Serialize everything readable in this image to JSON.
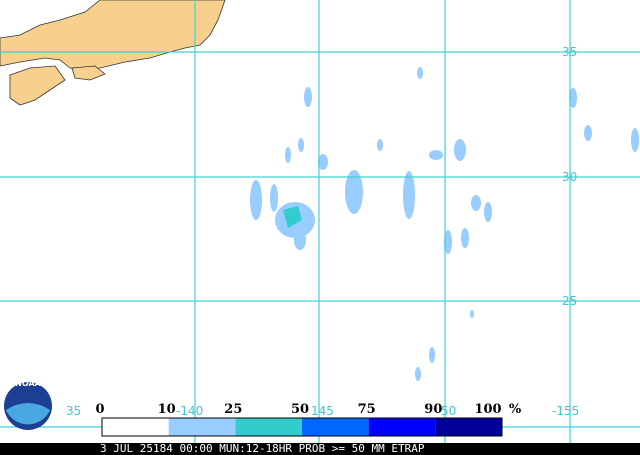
{
  "map": {
    "lat_labels": [
      "35",
      "30",
      "25"
    ],
    "lon_labels": [
      "35",
      "-140",
      "145",
      "50",
      "-155"
    ]
  },
  "legend": {
    "labels": [
      "0",
      "10",
      "25",
      "50",
      "75",
      "90",
      "100"
    ],
    "unit": "%",
    "colors": [
      "#ffffff",
      "#99ccff",
      "#33cccc",
      "#0066ff",
      "#0000ff",
      "#000099"
    ]
  },
  "logo": "NOAA",
  "footer": "3 JUL 25184 00:00 MUN:12-18HR PROB >= 50 MM ETRAP"
}
